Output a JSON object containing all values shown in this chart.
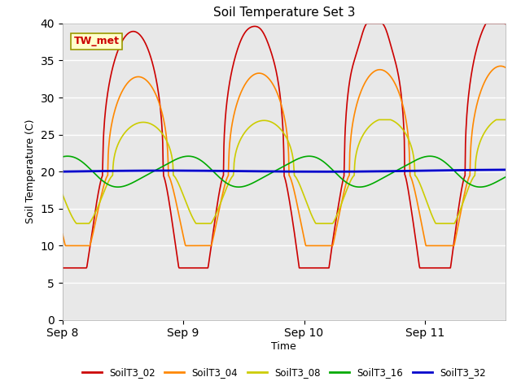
{
  "title": "Soil Temperature Set 3",
  "xlabel": "Time",
  "ylabel": "Soil Temperature (C)",
  "ylim": [
    0,
    40
  ],
  "yticks": [
    0,
    5,
    10,
    15,
    20,
    25,
    30,
    35,
    40
  ],
  "background_color": "#e8e8e8",
  "annotation_text": "TW_met",
  "annotation_bg": "#ffffcc",
  "annotation_fg": "#cc0000",
  "series_colors": {
    "SoilT3_02": "#cc0000",
    "SoilT3_04": "#ff8800",
    "SoilT3_08": "#cccc00",
    "SoilT3_16": "#00aa00",
    "SoilT3_32": "#0000cc"
  },
  "n_points": 1000,
  "xlim_hours": 88,
  "xtick_hours": [
    0,
    24,
    48,
    72
  ],
  "xtick_labels": [
    "Sep 8",
    "Sep 9",
    "Sep 10",
    "Sep 11"
  ]
}
